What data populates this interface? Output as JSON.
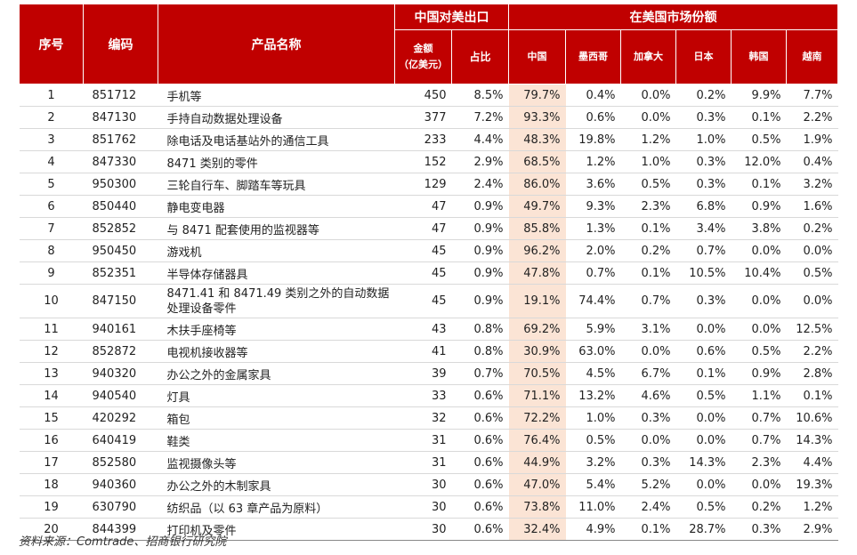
{
  "header": {
    "idx": "序号",
    "code": "编码",
    "name": "产品名称",
    "export_group": "中国对美出口",
    "share_group": "在美国市场份额",
    "amount_line1": "金额",
    "amount_line2": "（亿美元）",
    "ratio": "占比",
    "countries": [
      "中国",
      "墨西哥",
      "加拿大",
      "日本",
      "韩国",
      "越南"
    ]
  },
  "rows": [
    {
      "idx": "1",
      "code": "851712",
      "name": "手机等",
      "amount": "450",
      "ratio": "8.5%",
      "shares": [
        "79.7%",
        "0.4%",
        "0.0%",
        "0.2%",
        "9.9%",
        "7.7%"
      ]
    },
    {
      "idx": "2",
      "code": "847130",
      "name": "手持自动数据处理设备",
      "amount": "377",
      "ratio": "7.2%",
      "shares": [
        "93.3%",
        "0.6%",
        "0.0%",
        "0.3%",
        "0.1%",
        "2.2%"
      ]
    },
    {
      "idx": "3",
      "code": "851762",
      "name": "除电话及电话基站外的通信工具",
      "amount": "233",
      "ratio": "4.4%",
      "shares": [
        "48.3%",
        "19.8%",
        "1.2%",
        "1.0%",
        "0.5%",
        "1.9%"
      ]
    },
    {
      "idx": "4",
      "code": "847330",
      "name": "8471 类别的零件",
      "amount": "152",
      "ratio": "2.9%",
      "shares": [
        "68.5%",
        "1.2%",
        "1.0%",
        "0.3%",
        "12.0%",
        "0.4%"
      ]
    },
    {
      "idx": "5",
      "code": "950300",
      "name": "三轮自行车、脚踏车等玩具",
      "amount": "129",
      "ratio": "2.4%",
      "shares": [
        "86.0%",
        "3.6%",
        "0.5%",
        "0.3%",
        "0.1%",
        "3.2%"
      ]
    },
    {
      "idx": "6",
      "code": "850440",
      "name": "静电变电器",
      "amount": "47",
      "ratio": "0.9%",
      "shares": [
        "49.7%",
        "9.3%",
        "2.3%",
        "6.8%",
        "0.9%",
        "1.6%"
      ]
    },
    {
      "idx": "7",
      "code": "852852",
      "name": "与 8471 配套使用的监视器等",
      "amount": "47",
      "ratio": "0.9%",
      "shares": [
        "85.8%",
        "1.3%",
        "0.1%",
        "3.4%",
        "3.8%",
        "0.2%"
      ]
    },
    {
      "idx": "8",
      "code": "950450",
      "name": "游戏机",
      "amount": "45",
      "ratio": "0.9%",
      "shares": [
        "96.2%",
        "2.0%",
        "0.2%",
        "0.7%",
        "0.0%",
        "0.0%"
      ]
    },
    {
      "idx": "9",
      "code": "852351",
      "name": "半导体存储器具",
      "amount": "45",
      "ratio": "0.9%",
      "shares": [
        "47.8%",
        "0.7%",
        "0.1%",
        "10.5%",
        "10.4%",
        "0.5%"
      ]
    },
    {
      "idx": "10",
      "code": "847150",
      "name": "8471.41 和 8471.49 类别之外的自动数据处理设备零件",
      "amount": "45",
      "ratio": "0.9%",
      "shares": [
        "19.1%",
        "74.4%",
        "0.7%",
        "0.3%",
        "0.0%",
        "0.0%"
      ]
    },
    {
      "idx": "11",
      "code": "940161",
      "name": "木扶手座椅等",
      "amount": "43",
      "ratio": "0.8%",
      "shares": [
        "69.2%",
        "5.9%",
        "3.1%",
        "0.0%",
        "0.0%",
        "12.5%"
      ]
    },
    {
      "idx": "12",
      "code": "852872",
      "name": "电视机接收器等",
      "amount": "41",
      "ratio": "0.8%",
      "shares": [
        "30.9%",
        "63.0%",
        "0.0%",
        "0.6%",
        "0.5%",
        "2.2%"
      ]
    },
    {
      "idx": "13",
      "code": "940320",
      "name": "办公之外的金属家具",
      "amount": "39",
      "ratio": "0.7%",
      "shares": [
        "70.5%",
        "4.5%",
        "6.7%",
        "0.1%",
        "0.9%",
        "2.8%"
      ]
    },
    {
      "idx": "14",
      "code": "940540",
      "name": "灯具",
      "amount": "33",
      "ratio": "0.6%",
      "shares": [
        "71.1%",
        "13.2%",
        "4.6%",
        "0.5%",
        "1.1%",
        "0.1%"
      ]
    },
    {
      "idx": "15",
      "code": "420292",
      "name": "箱包",
      "amount": "32",
      "ratio": "0.6%",
      "shares": [
        "72.2%",
        "1.0%",
        "0.3%",
        "0.0%",
        "0.7%",
        "10.6%"
      ]
    },
    {
      "idx": "16",
      "code": "640419",
      "name": "鞋类",
      "amount": "31",
      "ratio": "0.6%",
      "shares": [
        "76.4%",
        "0.5%",
        "0.0%",
        "0.0%",
        "0.7%",
        "14.3%"
      ]
    },
    {
      "idx": "17",
      "code": "852580",
      "name": "监视摄像头等",
      "amount": "31",
      "ratio": "0.6%",
      "shares": [
        "44.9%",
        "3.2%",
        "0.3%",
        "14.3%",
        "2.3%",
        "4.4%"
      ]
    },
    {
      "idx": "18",
      "code": "940360",
      "name": "办公之外的木制家具",
      "amount": "30",
      "ratio": "0.6%",
      "shares": [
        "47.0%",
        "5.4%",
        "5.2%",
        "0.0%",
        "0.0%",
        "19.3%"
      ]
    },
    {
      "idx": "19",
      "code": "630790",
      "name": "纺织品（以 63 章产品为原料）",
      "amount": "30",
      "ratio": "0.6%",
      "shares": [
        "73.8%",
        "11.0%",
        "2.4%",
        "0.5%",
        "0.2%",
        "1.2%"
      ]
    },
    {
      "idx": "20",
      "code": "844399",
      "name": "打印机及零件",
      "amount": "30",
      "ratio": "0.6%",
      "shares": [
        "32.4%",
        "4.9%",
        "0.1%",
        "28.7%",
        "0.3%",
        "2.9%"
      ]
    }
  ],
  "source": "资料来源：Comtrade、招商银行研究院",
  "colors": {
    "header_bg": "#c00000",
    "header_text": "#ffffff",
    "china_col_bg": "#fbe4d5"
  }
}
